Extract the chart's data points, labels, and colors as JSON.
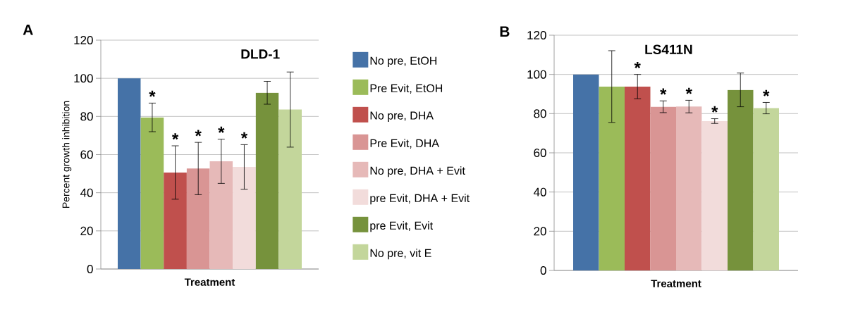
{
  "chart_data": [
    {
      "type": "bar",
      "title": "A",
      "annotations": [
        "DLD-1"
      ],
      "xlabel": "Treatment",
      "ylabel": "Percent growth inhibition",
      "categories": [
        null
      ],
      "ylim": [
        0,
        120
      ],
      "yticks": [
        0,
        20,
        40,
        60,
        80,
        100,
        120
      ],
      "grid": "y",
      "legend": "right",
      "series": [
        {
          "name": "No pre, EtOH",
          "color": "#4572a7",
          "values": [
            100
          ],
          "errors": [
            null
          ]
        },
        {
          "name": "Pre Evit, EtOH",
          "color": "#9bbb59",
          "values": [
            79.5
          ],
          "errors": [
            7.5
          ],
          "value_labels": [
            "*"
          ]
        },
        {
          "name": "No pre, DHA",
          "color": "#c0504d",
          "values": [
            50.6
          ],
          "errors": [
            14
          ],
          "value_labels": [
            "*"
          ]
        },
        {
          "name": "Pre Evit, DHA",
          "color": "#d99594",
          "values": [
            52.7
          ],
          "errors": [
            13.7
          ],
          "value_labels": [
            "*"
          ]
        },
        {
          "name": "No pre, DHA + Evit",
          "color": "#e6b9b8",
          "values": [
            56.5
          ],
          "errors": [
            11.6
          ],
          "value_labels": [
            "*"
          ]
        },
        {
          "name": "pre Evit, DHA + Evit",
          "color": "#f2dcdb",
          "values": [
            53.5
          ],
          "errors": [
            11.7
          ],
          "value_labels": [
            "*"
          ]
        },
        {
          "name": "pre Evit, Evit",
          "color": "#76923c",
          "values": [
            92.4
          ],
          "errors": [
            6
          ]
        },
        {
          "name": "No pre, vit E",
          "color": "#c3d69b",
          "values": [
            83.6
          ],
          "errors": [
            19.7
          ]
        }
      ]
    },
    {
      "type": "bar",
      "title": "B",
      "annotations": [
        "LS411N"
      ],
      "xlabel": "Treatment",
      "categories": [
        null
      ],
      "ylim": [
        0,
        120
      ],
      "yticks": [
        0,
        20,
        40,
        60,
        80,
        100,
        120
      ],
      "grid": "y",
      "series": [
        {
          "color": "#4572a7",
          "values": [
            100
          ],
          "errors": [
            null
          ]
        },
        {
          "color": "#9bbb59",
          "values": [
            93.8
          ],
          "errors": [
            18.3
          ]
        },
        {
          "color": "#c0504d",
          "values": [
            93.8
          ],
          "errors": [
            6.2
          ],
          "value_labels": [
            "*"
          ]
        },
        {
          "color": "#d99594",
          "values": [
            83.5
          ],
          "errors": [
            3
          ],
          "value_labels": [
            "*"
          ]
        },
        {
          "color": "#e6b9b8",
          "values": [
            83.6
          ],
          "errors": [
            3.2
          ],
          "value_labels": [
            "*"
          ]
        },
        {
          "color": "#f2dcdb",
          "values": [
            76.2
          ],
          "errors": [
            1.2
          ],
          "value_labels": [
            "*"
          ]
        },
        {
          "color": "#76923c",
          "values": [
            92.1
          ],
          "errors": [
            8.6
          ]
        },
        {
          "color": "#c3d69b",
          "values": [
            82.8
          ],
          "errors": [
            2.9
          ],
          "value_labels": [
            "*"
          ]
        }
      ]
    }
  ]
}
